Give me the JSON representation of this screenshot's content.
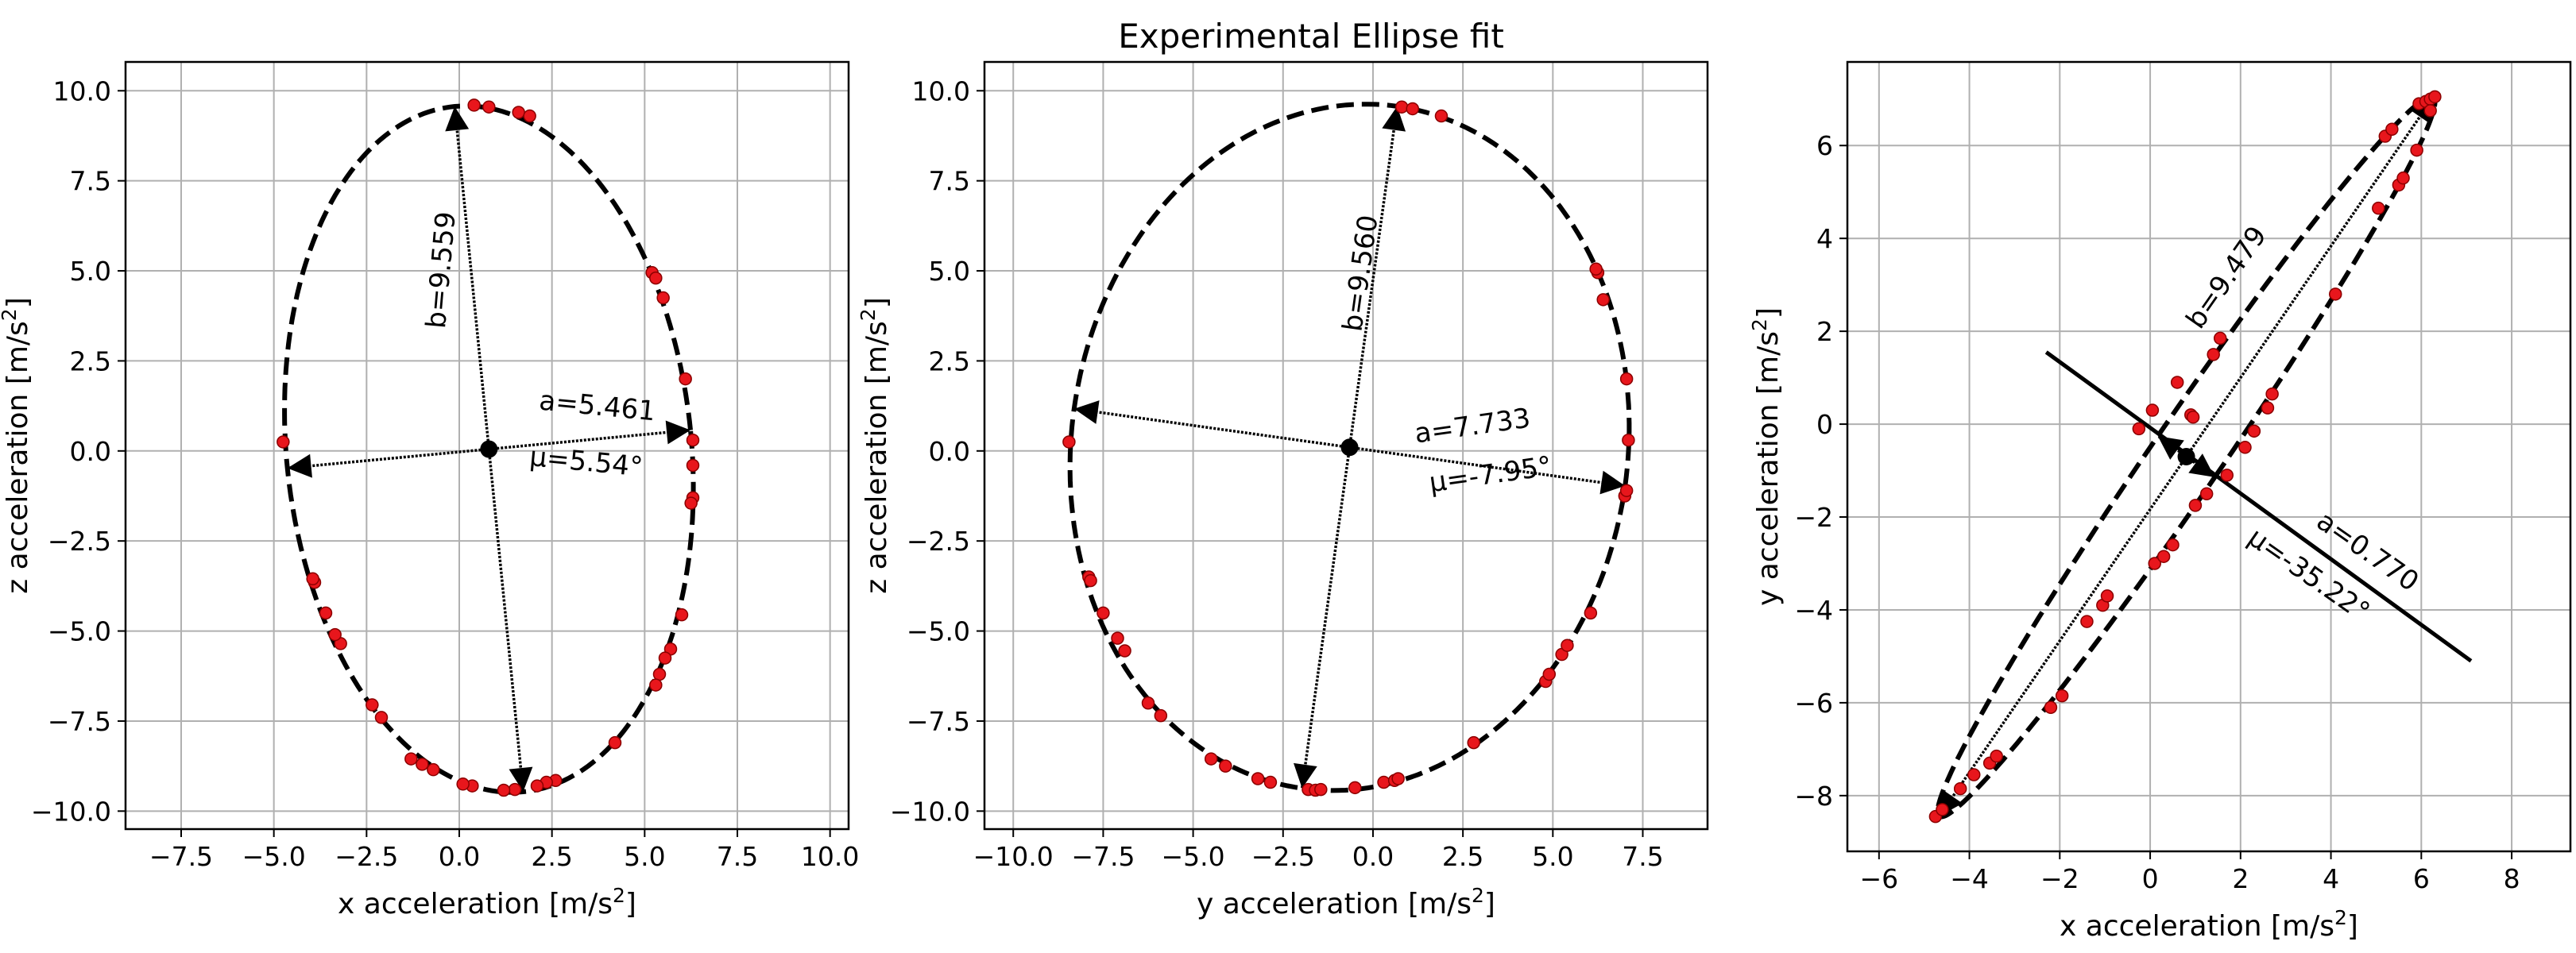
{
  "figure_title": "Experimental Ellipse fit",
  "colors": {
    "data": "#e8161c",
    "data_edge": "#8b0000",
    "line": "#000000",
    "grid": "#b0b0b0"
  },
  "chart_data": [
    {
      "type": "scatter",
      "xlabel_text": "x acceleration [m/s",
      "ylabel_text": "z acceleration [m/s",
      "label_sup": "2",
      "label_close": "]",
      "xlim": [
        -9.0,
        10.5
      ],
      "ylim": [
        -10.5,
        10.8
      ],
      "xticks": [
        -7.5,
        -5.0,
        -2.5,
        0.0,
        2.5,
        5.0,
        7.5,
        10.0
      ],
      "yticks": [
        -10.0,
        -7.5,
        -5.0,
        -2.5,
        0.0,
        2.5,
        5.0,
        7.5,
        10.0
      ],
      "xtick_labels": [
        "−7.5",
        "−5.0",
        "−2.5",
        "0.0",
        "2.5",
        "5.0",
        "7.5",
        "10.0"
      ],
      "ytick_labels": [
        "−10.0",
        "−7.5",
        "−5.0",
        "−2.5",
        "0.0",
        "2.5",
        "5.0",
        "7.5",
        "10.0"
      ],
      "ellipse": {
        "center": [
          0.8,
          0.05
        ],
        "a": 5.461,
        "b": 9.559,
        "angle_deg": 5.54
      },
      "label_a": "a=5.461",
      "label_b": "b=9.559",
      "label_mu": "μ=5.54°",
      "label_a_at": [
        3.7,
        1.0
      ],
      "label_a_rot": 5.5,
      "label_mu_at": [
        3.4,
        -0.55
      ],
      "label_mu_rot": 5.5,
      "label_b_at": [
        -0.25,
        5.0
      ],
      "label_b_rot": -85,
      "points": [
        [
          -4.75,
          0.25
        ],
        [
          0.4,
          9.6
        ],
        [
          0.8,
          9.55
        ],
        [
          1.6,
          9.4
        ],
        [
          1.9,
          9.3
        ],
        [
          5.2,
          4.95
        ],
        [
          5.3,
          4.8
        ],
        [
          5.5,
          4.25
        ],
        [
          6.1,
          2.0
        ],
        [
          6.3,
          0.3
        ],
        [
          6.3,
          -0.4
        ],
        [
          6.3,
          -1.3
        ],
        [
          6.25,
          -1.45
        ],
        [
          6.0,
          -4.55
        ],
        [
          5.7,
          -5.5
        ],
        [
          5.55,
          -5.75
        ],
        [
          5.4,
          -6.2
        ],
        [
          5.3,
          -6.5
        ],
        [
          4.2,
          -8.1
        ],
        [
          2.6,
          -9.15
        ],
        [
          2.35,
          -9.2
        ],
        [
          2.1,
          -9.3
        ],
        [
          1.5,
          -9.4
        ],
        [
          1.2,
          -9.42
        ],
        [
          0.35,
          -9.3
        ],
        [
          0.1,
          -9.25
        ],
        [
          -0.7,
          -8.85
        ],
        [
          -1.0,
          -8.7
        ],
        [
          -1.3,
          -8.55
        ],
        [
          -2.1,
          -7.4
        ],
        [
          -2.35,
          -7.05
        ],
        [
          -3.2,
          -5.35
        ],
        [
          -3.35,
          -5.1
        ],
        [
          -3.6,
          -4.5
        ],
        [
          -3.9,
          -3.65
        ],
        [
          -3.95,
          -3.55
        ]
      ]
    },
    {
      "type": "scatter",
      "xlabel_text": "y acceleration [m/s",
      "ylabel_text": "z acceleration [m/s",
      "label_sup": "2",
      "label_close": "]",
      "xlim": [
        -10.8,
        9.3
      ],
      "ylim": [
        -10.5,
        10.8
      ],
      "xticks": [
        -10.0,
        -7.5,
        -5.0,
        -2.5,
        0.0,
        2.5,
        5.0,
        7.5
      ],
      "yticks": [
        -10.0,
        -7.5,
        -5.0,
        -2.5,
        0.0,
        2.5,
        5.0,
        7.5,
        10.0
      ],
      "xtick_labels": [
        "−10.0",
        "−7.5",
        "−5.0",
        "−2.5",
        "0.0",
        "2.5",
        "5.0",
        "7.5"
      ],
      "ytick_labels": [
        "−10.0",
        "−7.5",
        "−5.0",
        "−2.5",
        "0.0",
        "2.5",
        "5.0",
        "7.5",
        "10.0"
      ],
      "ellipse": {
        "center": [
          -0.65,
          0.1
        ],
        "a": 7.733,
        "b": 9.56,
        "angle_deg": -7.95
      },
      "label_a": "a=7.733",
      "label_b": "b=9.560",
      "label_mu": "μ=-7.95°",
      "label_a_at": [
        2.8,
        0.45
      ],
      "label_a_rot": -8,
      "label_mu_at": [
        3.3,
        -0.9
      ],
      "label_mu_rot": -8,
      "label_b_at": [
        -0.1,
        4.9
      ],
      "label_b_rot": -82,
      "points": [
        [
          -8.45,
          0.25
        ],
        [
          -7.9,
          -3.5
        ],
        [
          -7.85,
          -3.6
        ],
        [
          -7.5,
          -4.5
        ],
        [
          -7.1,
          -5.2
        ],
        [
          -6.9,
          -5.55
        ],
        [
          -6.25,
          -7.0
        ],
        [
          -5.9,
          -7.35
        ],
        [
          -4.5,
          -8.55
        ],
        [
          -4.1,
          -8.75
        ],
        [
          -3.2,
          -9.1
        ],
        [
          -2.85,
          -9.2
        ],
        [
          -1.8,
          -9.4
        ],
        [
          -1.6,
          -9.42
        ],
        [
          -1.45,
          -9.4
        ],
        [
          -0.5,
          -9.35
        ],
        [
          0.3,
          -9.2
        ],
        [
          0.6,
          -9.15
        ],
        [
          0.7,
          -9.1
        ],
        [
          2.8,
          -8.1
        ],
        [
          4.8,
          -6.4
        ],
        [
          4.9,
          -6.2
        ],
        [
          5.25,
          -5.65
        ],
        [
          5.4,
          -5.4
        ],
        [
          6.05,
          -4.5
        ],
        [
          7.0,
          -1.25
        ],
        [
          7.05,
          -1.1
        ],
        [
          7.1,
          0.3
        ],
        [
          7.05,
          2.0
        ],
        [
          6.4,
          4.2
        ],
        [
          6.25,
          4.95
        ],
        [
          6.2,
          5.05
        ],
        [
          0.8,
          9.55
        ],
        [
          1.1,
          9.5
        ],
        [
          1.9,
          9.3
        ]
      ]
    },
    {
      "type": "scatter",
      "xlabel_text": "x acceleration [m/s",
      "ylabel_text": "y acceleration [m/s",
      "label_sup": "2",
      "label_close": "]",
      "xlim": [
        -6.7,
        9.3
      ],
      "ylim": [
        -9.2,
        7.8
      ],
      "xticks": [
        -6,
        -4,
        -2,
        0,
        2,
        4,
        6,
        8
      ],
      "yticks": [
        -8,
        -6,
        -4,
        -2,
        0,
        2,
        4,
        6
      ],
      "xtick_labels": [
        "−6",
        "−4",
        "−2",
        "0",
        "2",
        "4",
        "6",
        "8"
      ],
      "ytick_labels": [
        "−8",
        "−6",
        "−4",
        "−2",
        "0",
        "2",
        "4",
        "6"
      ],
      "ellipse": {
        "center": [
          0.8,
          -0.7
        ],
        "a": 0.77,
        "b": 9.479,
        "angle_deg": -35.22
      },
      "minor_axis_line": [
        [
          -2.3,
          1.55
        ],
        [
          7.1,
          -5.1
        ]
      ],
      "label_a": "a=0.770",
      "label_b": "b=9.479",
      "label_mu": "μ=-35.22°",
      "label_a_at": [
        4.7,
        -2.9
      ],
      "label_a_rot": 35,
      "label_mu_at": [
        3.4,
        -3.4
      ],
      "label_mu_rot": 35,
      "label_b_at": [
        1.85,
        3.05
      ],
      "label_b_rot": -55,
      "points": [
        [
          -4.75,
          -8.45
        ],
        [
          -4.6,
          -8.3
        ],
        [
          -4.2,
          -7.85
        ],
        [
          -3.9,
          -7.55
        ],
        [
          -3.55,
          -7.3
        ],
        [
          -3.4,
          -7.15
        ],
        [
          -2.2,
          -6.1
        ],
        [
          -1.95,
          -5.85
        ],
        [
          -1.4,
          -4.25
        ],
        [
          -1.05,
          -3.9
        ],
        [
          -0.95,
          -3.7
        ],
        [
          -0.25,
          -0.1
        ],
        [
          0.05,
          0.3
        ],
        [
          0.6,
          0.9
        ],
        [
          0.9,
          0.2
        ],
        [
          0.95,
          0.15
        ],
        [
          1.4,
          1.5
        ],
        [
          1.55,
          1.85
        ],
        [
          0.1,
          -3.0
        ],
        [
          0.3,
          -2.85
        ],
        [
          0.5,
          -2.6
        ],
        [
          1.0,
          -1.75
        ],
        [
          1.25,
          -1.5
        ],
        [
          1.7,
          -1.1
        ],
        [
          2.1,
          -0.5
        ],
        [
          2.3,
          -0.15
        ],
        [
          2.6,
          0.35
        ],
        [
          2.7,
          0.65
        ],
        [
          4.1,
          2.8
        ],
        [
          5.05,
          4.65
        ],
        [
          5.5,
          5.15
        ],
        [
          5.6,
          5.3
        ],
        [
          5.9,
          5.9
        ],
        [
          5.2,
          6.2
        ],
        [
          5.35,
          6.35
        ],
        [
          5.95,
          6.9
        ],
        [
          6.1,
          6.95
        ],
        [
          6.2,
          7.0
        ],
        [
          6.3,
          7.05
        ],
        [
          6.2,
          6.75
        ]
      ]
    }
  ]
}
